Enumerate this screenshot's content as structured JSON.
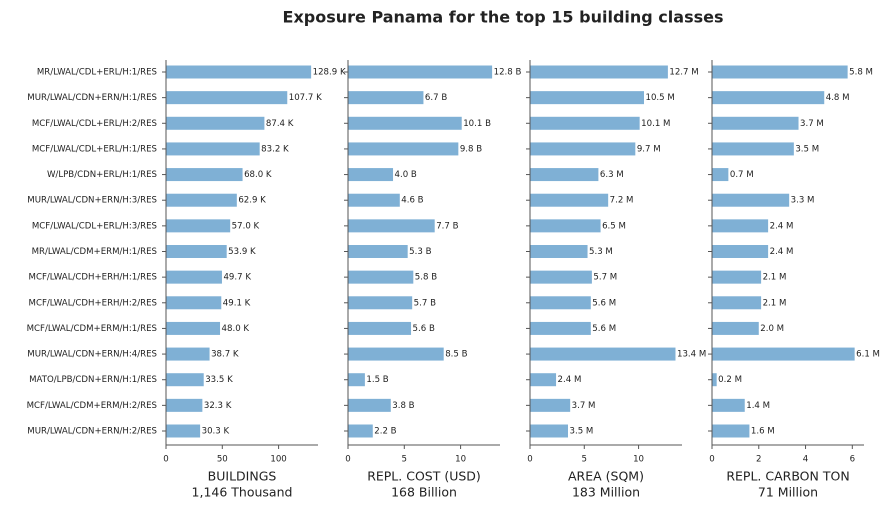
{
  "title": "Exposure Panama for the top 15 building classes",
  "chart_data": [
    {
      "type": "barh",
      "color": "#7fb0d5",
      "categories": [
        "MR/LWAL/CDL+ERL/H:1/RES",
        "MUR/LWAL/CDN+ERN/H:1/RES",
        "MCF/LWAL/CDL+ERL/H:2/RES",
        "MCF/LWAL/CDL+ERL/H:1/RES",
        "W/LPB/CDN+ERL/H:1/RES",
        "MUR/LWAL/CDN+ERN/H:3/RES",
        "MCF/LWAL/CDL+ERL/H:3/RES",
        "MR/LWAL/CDM+ERM/H:1/RES",
        "MCF/LWAL/CDH+ERH/H:1/RES",
        "MCF/LWAL/CDH+ERH/H:2/RES",
        "MCF/LWAL/CDM+ERM/H:1/RES",
        "MUR/LWAL/CDN+ERN/H:4/RES",
        "MATO/LPB/CDN+ERN/H:1/RES",
        "MCF/LWAL/CDM+ERM/H:2/RES",
        "MUR/LWAL/CDN+ERN/H:2/RES"
      ],
      "values": [
        128.9,
        107.7,
        87.4,
        83.2,
        68.0,
        62.9,
        57.0,
        53.9,
        49.7,
        49.1,
        48.0,
        38.7,
        33.5,
        32.3,
        30.3
      ],
      "value_labels": [
        "128.9 K",
        "107.7 K",
        "87.4 K",
        "83.2 K",
        "68.0 K",
        "62.9 K",
        "57.0 K",
        "53.9 K",
        "49.7 K",
        "49.1 K",
        "48.0 K",
        "38.7 K",
        "33.5 K",
        "32.3 K",
        "30.3 K"
      ],
      "xlim": [
        0,
        135
      ],
      "xticks": [
        0,
        50,
        100
      ],
      "x_label": "BUILDINGS",
      "x_sublabel": "1,146 Thousand"
    },
    {
      "type": "barh",
      "color": "#7fb0d5",
      "values": [
        12.8,
        6.7,
        10.1,
        9.8,
        4.0,
        4.6,
        7.7,
        5.3,
        5.8,
        5.7,
        5.6,
        8.5,
        1.5,
        3.8,
        2.2
      ],
      "value_labels": [
        "12.8 B",
        "6.7 B",
        "10.1 B",
        "9.8 B",
        "4.0 B",
        "4.6 B",
        "7.7 B",
        "5.3 B",
        "5.8 B",
        "5.7 B",
        "5.6 B",
        "8.5 B",
        "1.5 B",
        "3.8 B",
        "2.2 B"
      ],
      "xlim": [
        0,
        13.5
      ],
      "xticks": [
        0,
        5,
        10
      ],
      "x_label": "REPL. COST (USD)",
      "x_sublabel": "168 Billion"
    },
    {
      "type": "barh",
      "color": "#7fb0d5",
      "values": [
        12.7,
        10.5,
        10.1,
        9.7,
        6.3,
        7.2,
        6.5,
        5.3,
        5.7,
        5.6,
        5.6,
        13.4,
        2.4,
        3.7,
        3.5
      ],
      "value_labels": [
        "12.7 M",
        "10.5 M",
        "10.1 M",
        "9.7 M",
        "6.3 M",
        "7.2 M",
        "6.5 M",
        "5.3 M",
        "5.7 M",
        "5.6 M",
        "5.6 M",
        "13.4 M",
        "2.4 M",
        "3.7 M",
        "3.5 M"
      ],
      "xlim": [
        0,
        14
      ],
      "xticks": [
        0,
        5,
        10
      ],
      "x_label": "AREA (SQM)",
      "x_sublabel": "183 Million"
    },
    {
      "type": "barh",
      "color": "#7fb0d5",
      "values": [
        5.8,
        4.8,
        3.7,
        3.5,
        0.7,
        3.3,
        2.4,
        2.4,
        2.1,
        2.1,
        2.0,
        6.1,
        0.2,
        1.4,
        1.6
      ],
      "value_labels": [
        "5.8 M",
        "4.8 M",
        "3.7 M",
        "3.5 M",
        "0.7 M",
        "3.3 M",
        "2.4 M",
        "2.4 M",
        "2.1 M",
        "2.1 M",
        "2.0 M",
        "6.1 M",
        "0.2 M",
        "1.4 M",
        "1.6 M"
      ],
      "xlim": [
        0,
        6.5
      ],
      "xticks": [
        0,
        2,
        4,
        6
      ],
      "x_label": "REPL. CARBON TON",
      "x_sublabel": "71 Million"
    }
  ]
}
